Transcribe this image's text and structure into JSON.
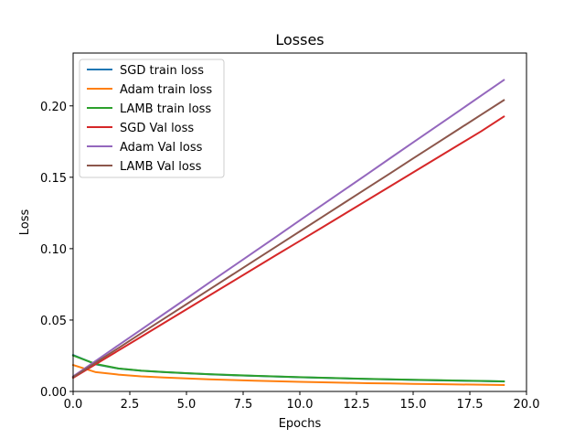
{
  "chart_data": {
    "type": "line",
    "title": "Losses",
    "xlabel": "Epochs",
    "ylabel": "Loss",
    "xlim": [
      0,
      20
    ],
    "ylim": [
      0,
      0.237
    ],
    "xticks": [
      "0.0",
      "2.5",
      "5.0",
      "7.5",
      "10.0",
      "12.5",
      "15.0",
      "17.5",
      "20.0"
    ],
    "yticks": [
      "0.00",
      "0.05",
      "0.10",
      "0.15",
      "0.20"
    ],
    "x": [
      0,
      1,
      2,
      3,
      4,
      5,
      6,
      7,
      8,
      9,
      10,
      11,
      12,
      13,
      14,
      15,
      16,
      17,
      18,
      19
    ],
    "grid": false,
    "legend_position": "top-left",
    "series": [
      {
        "name": "SGD train loss",
        "color": "#1f77b4",
        "values": [
          0.0255,
          0.019,
          0.016,
          0.0145,
          0.0135,
          0.0127,
          0.012,
          0.0114,
          0.0109,
          0.0104,
          0.0099,
          0.0095,
          0.0091,
          0.0087,
          0.0084,
          0.0081,
          0.0078,
          0.0075,
          0.0073,
          0.007
        ]
      },
      {
        "name": "Adam train loss",
        "color": "#ff7f0e",
        "values": [
          0.0185,
          0.0135,
          0.0118,
          0.0106,
          0.0098,
          0.0091,
          0.0085,
          0.008,
          0.0075,
          0.0071,
          0.0067,
          0.0064,
          0.0061,
          0.0058,
          0.0056,
          0.0053,
          0.0051,
          0.0049,
          0.0047,
          0.0045
        ]
      },
      {
        "name": "LAMB train loss",
        "color": "#2ca02c",
        "values": [
          0.0252,
          0.0192,
          0.0161,
          0.0146,
          0.0136,
          0.0128,
          0.0121,
          0.0115,
          0.011,
          0.0105,
          0.01,
          0.0096,
          0.0092,
          0.0088,
          0.0085,
          0.0082,
          0.0079,
          0.0076,
          0.0074,
          0.0071
        ]
      },
      {
        "name": "SGD Val loss",
        "color": "#d62728",
        "values": [
          0.0095,
          0.0191,
          0.0287,
          0.0383,
          0.0479,
          0.0575,
          0.0671,
          0.0767,
          0.0863,
          0.0959,
          0.1054,
          0.115,
          0.1246,
          0.1342,
          0.1438,
          0.1534,
          0.163,
          0.1726,
          0.1822,
          0.1925
        ]
      },
      {
        "name": "Adam Val loss",
        "color": "#9467bd",
        "values": [
          0.0105,
          0.0214,
          0.0324,
          0.0433,
          0.0542,
          0.0651,
          0.0761,
          0.087,
          0.0979,
          0.1088,
          0.1198,
          0.1307,
          0.1416,
          0.1525,
          0.1635,
          0.1744,
          0.1853,
          0.1962,
          0.2072,
          0.2181
        ]
      },
      {
        "name": "LAMB Val loss",
        "color": "#8c564b",
        "values": [
          0.01,
          0.0202,
          0.0304,
          0.0407,
          0.0509,
          0.0611,
          0.0713,
          0.0815,
          0.0917,
          0.1019,
          0.1121,
          0.1223,
          0.1325,
          0.1427,
          0.1529,
          0.1632,
          0.1734,
          0.1836,
          0.1938,
          0.204
        ]
      }
    ]
  }
}
